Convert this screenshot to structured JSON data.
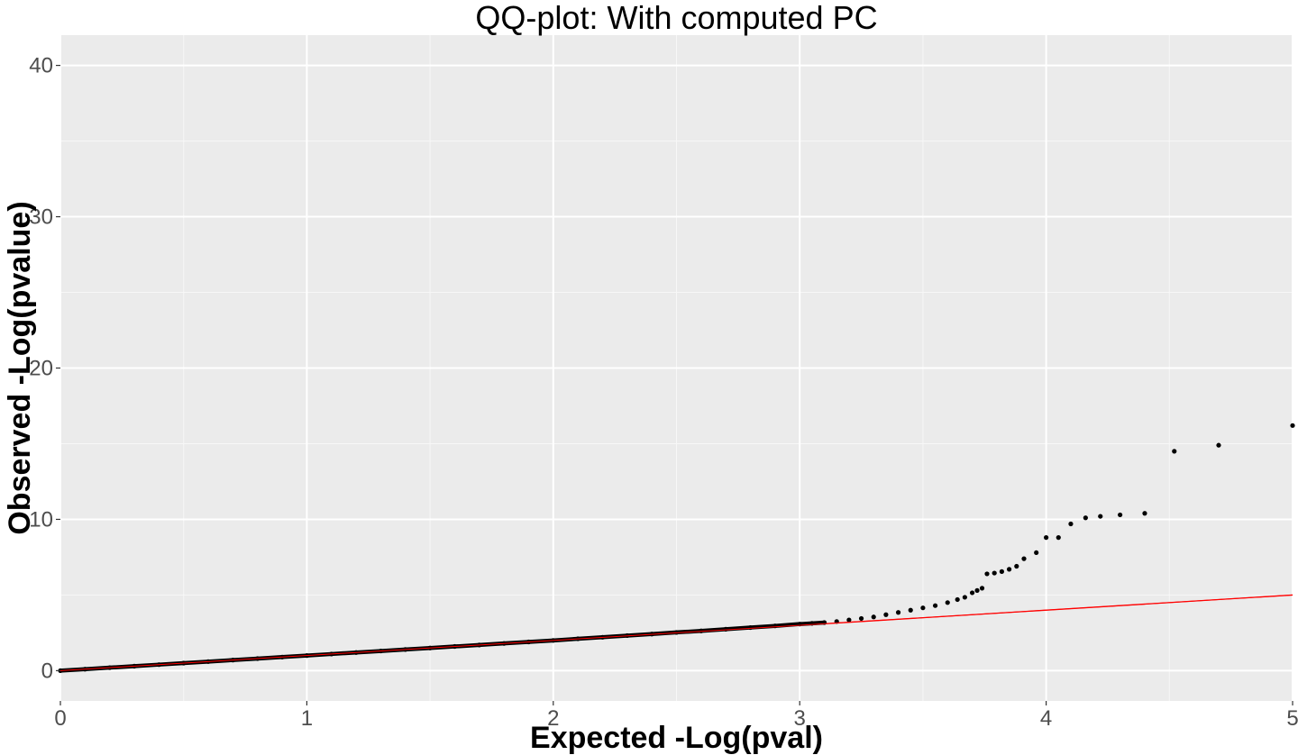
{
  "chart_data": {
    "type": "scatter",
    "title": "QQ-plot: With computed PC",
    "xlabel": "Expected  -Log(pval)",
    "ylabel": "Observed -Log(pvalue)",
    "xlim": [
      0,
      5
    ],
    "ylim": [
      -2,
      42
    ],
    "x_ticks": [
      0,
      1,
      2,
      3,
      4,
      5
    ],
    "y_ticks": [
      0,
      10,
      20,
      30,
      40
    ],
    "x_tick_labels": [
      "0",
      "1",
      "2",
      "3",
      "4",
      "5"
    ],
    "y_tick_labels": [
      "0",
      "10",
      "20",
      "30",
      "40"
    ],
    "grid": true,
    "background": "#ebebeb",
    "point_color": "#000000",
    "reference_line": {
      "label": "",
      "color": "#ff0000",
      "slope": 1,
      "intercept": 0
    },
    "series": [
      {
        "points": [
          [
            0.0,
            0.0
          ],
          [
            0.1,
            0.1
          ],
          [
            0.2,
            0.2
          ],
          [
            0.3,
            0.3
          ],
          [
            0.4,
            0.4
          ],
          [
            0.5,
            0.5
          ],
          [
            0.6,
            0.6
          ],
          [
            0.7,
            0.7
          ],
          [
            0.8,
            0.8
          ],
          [
            0.9,
            0.9
          ],
          [
            1.0,
            1.0
          ],
          [
            1.1,
            1.1
          ],
          [
            1.2,
            1.2
          ],
          [
            1.3,
            1.3
          ],
          [
            1.4,
            1.4
          ],
          [
            1.5,
            1.5
          ],
          [
            1.6,
            1.6
          ],
          [
            1.7,
            1.7
          ],
          [
            1.8,
            1.8
          ],
          [
            1.9,
            1.9
          ],
          [
            2.0,
            2.0
          ],
          [
            2.1,
            2.11
          ],
          [
            2.2,
            2.21
          ],
          [
            2.3,
            2.32
          ],
          [
            2.4,
            2.42
          ],
          [
            2.5,
            2.53
          ],
          [
            2.6,
            2.63
          ],
          [
            2.7,
            2.74
          ],
          [
            2.8,
            2.85
          ],
          [
            2.9,
            2.96
          ],
          [
            3.0,
            3.08
          ],
          [
            3.05,
            3.13
          ],
          [
            3.1,
            3.18
          ],
          [
            3.15,
            3.25
          ],
          [
            3.2,
            3.35
          ],
          [
            3.25,
            3.45
          ],
          [
            3.3,
            3.55
          ],
          [
            3.35,
            3.7
          ],
          [
            3.4,
            3.85
          ],
          [
            3.45,
            4.0
          ],
          [
            3.5,
            4.15
          ],
          [
            3.55,
            4.3
          ],
          [
            3.6,
            4.5
          ],
          [
            3.64,
            4.7
          ],
          [
            3.67,
            4.85
          ],
          [
            3.7,
            5.15
          ],
          [
            3.72,
            5.3
          ],
          [
            3.74,
            5.45
          ],
          [
            3.76,
            6.4
          ],
          [
            3.79,
            6.45
          ],
          [
            3.82,
            6.55
          ],
          [
            3.85,
            6.7
          ],
          [
            3.88,
            6.9
          ],
          [
            3.91,
            7.4
          ],
          [
            3.96,
            7.8
          ],
          [
            4.0,
            8.8
          ],
          [
            4.05,
            8.8
          ],
          [
            4.1,
            9.7
          ],
          [
            4.16,
            10.1
          ],
          [
            4.22,
            10.2
          ],
          [
            4.3,
            10.3
          ],
          [
            4.4,
            10.4
          ],
          [
            4.52,
            14.5
          ],
          [
            4.7,
            14.9
          ],
          [
            5.0,
            16.2
          ]
        ]
      }
    ]
  }
}
